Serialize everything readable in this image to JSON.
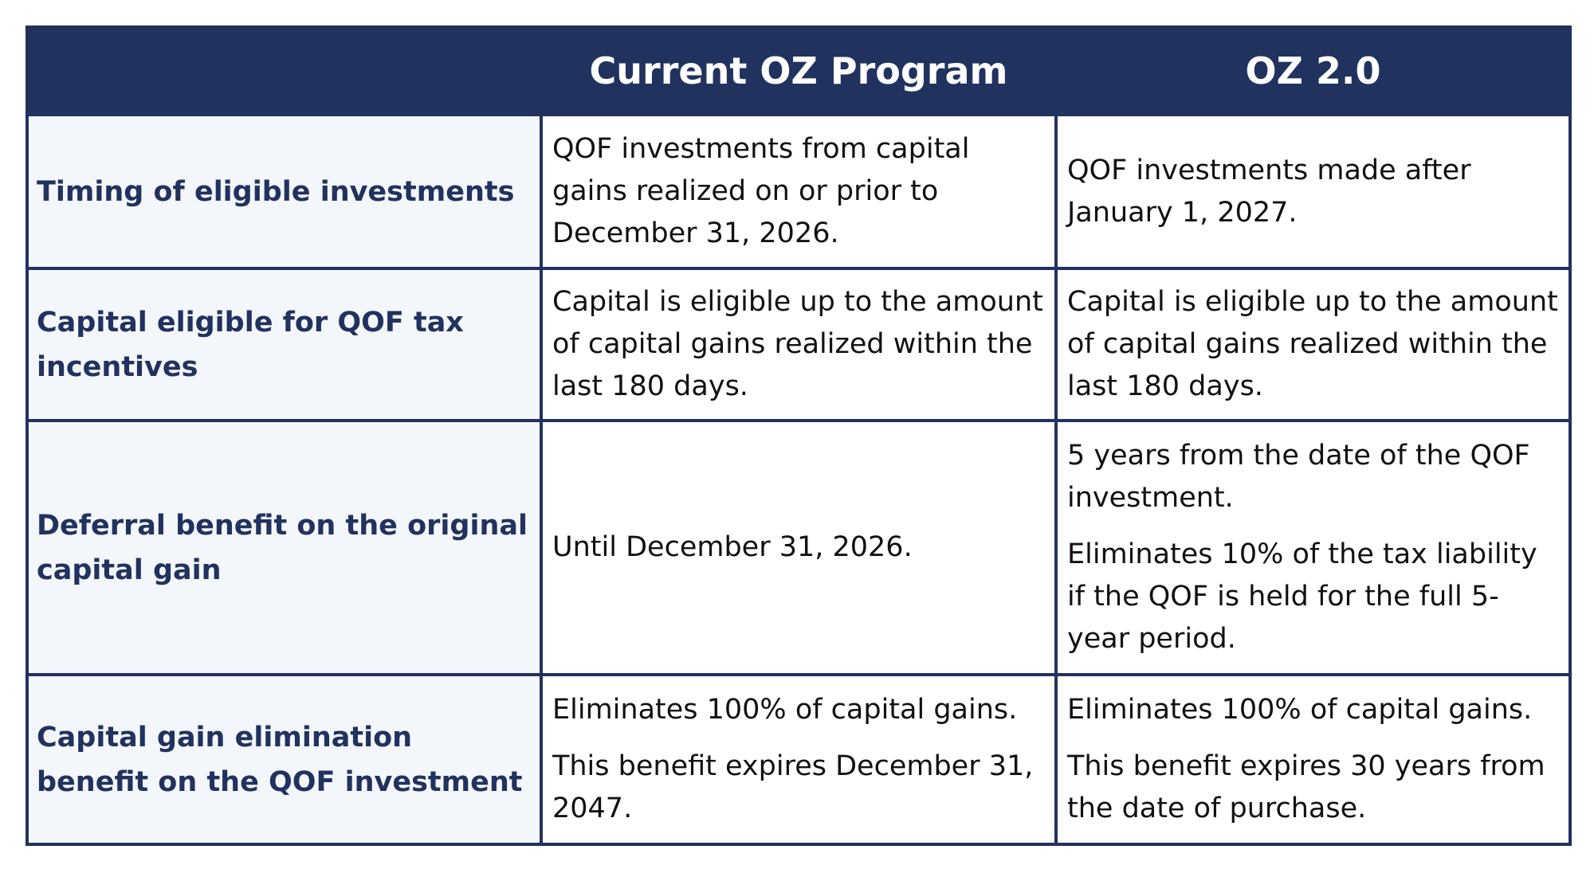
{
  "table": {
    "headers": [
      "Current OZ Program",
      "OZ 2.0"
    ],
    "rows": [
      {
        "label": "Timing of eligible investments",
        "cells": [
          [
            "QOF investments from capital gains realized on or prior to December 31, 2026."
          ],
          [
            "QOF investments made after January 1, 2027."
          ]
        ]
      },
      {
        "label": "Capital eligible for QOF tax incentives",
        "cells": [
          [
            "Capital is eligible up to the amount of capital gains realized within the last 180 days."
          ],
          [
            "Capital is eligible up to the amount of capital gains realized within the last 180 days."
          ]
        ]
      },
      {
        "label": "Deferral benefit on the original capital gain",
        "cells": [
          [
            "Until December 31, 2026."
          ],
          [
            "5 years from the date of the QOF investment.",
            "Eliminates 10% of the tax liability if the QOF is held for the full 5-year period."
          ]
        ]
      },
      {
        "label": "Capital gain elimination benefit on the QOF investment",
        "cells": [
          [
            "Eliminates 100% of capital gains.",
            "This benefit expires December 31, 2047."
          ],
          [
            "Eliminates 100% of capital gains.",
            "This benefit expires 30 years from the date of purchase."
          ]
        ]
      }
    ]
  }
}
